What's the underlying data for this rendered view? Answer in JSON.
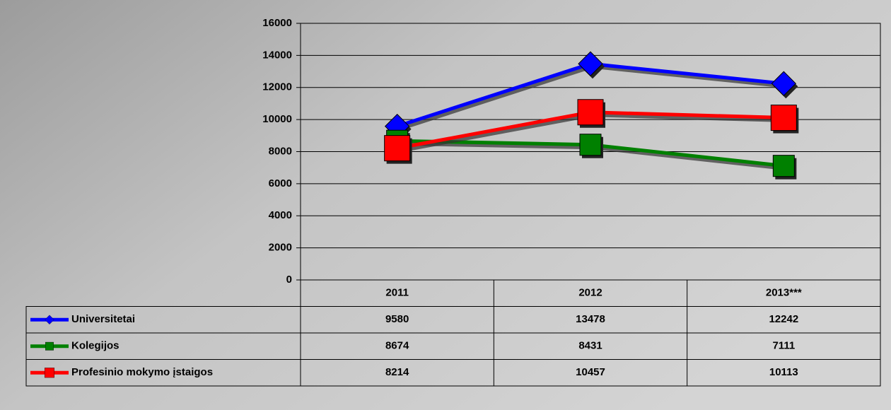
{
  "chart_data": {
    "type": "line",
    "categories": [
      "2011",
      "2012",
      "2013***"
    ],
    "series": [
      {
        "name": "Universitetai",
        "color": "#0000ff",
        "marker": "diamond",
        "values": [
          9580,
          13478,
          12242
        ]
      },
      {
        "name": "Kolegijos",
        "color": "#008000",
        "marker": "square",
        "values": [
          8674,
          8431,
          7111
        ]
      },
      {
        "name": "Profesinio mokymo įstaigos",
        "color": "#ff0000",
        "marker": "square",
        "values": [
          8214,
          10457,
          10113
        ]
      }
    ],
    "ylim": [
      0,
      16000
    ],
    "yticks": [
      0,
      2000,
      4000,
      6000,
      8000,
      10000,
      12000,
      14000,
      16000
    ],
    "grid": true,
    "data_table": true
  }
}
